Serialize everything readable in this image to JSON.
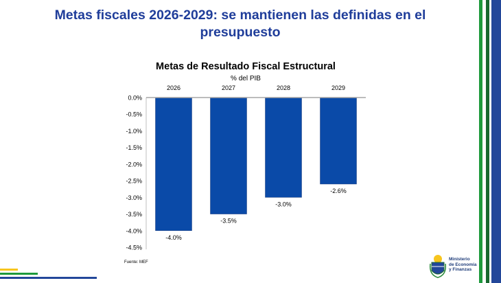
{
  "slide": {
    "title": "Metas fiscales 2026-2029: se mantienen las definidas en el presupuesto",
    "source": "Fuente: MEF",
    "logo_text": [
      "Ministerio",
      "de Economía",
      "y Finanzas"
    ],
    "colors": {
      "title": "#1f3d9a",
      "green": "#1e9a3c",
      "dark_green": "#17682e",
      "blue": "#23479a",
      "yellow": "#f7c51e"
    }
  },
  "chart_data": {
    "type": "bar",
    "title": "Metas de Resultado Fiscal Estructural",
    "subtitle": "% del PIB",
    "categories": [
      "2026",
      "2027",
      "2028",
      "2029"
    ],
    "values": [
      -4.0,
      -3.5,
      -3.0,
      -2.6
    ],
    "data_labels": [
      "-4.0%",
      "-3.5%",
      "-3.0%",
      "-2.6%"
    ],
    "ylim": [
      -4.5,
      0
    ],
    "yticks": [
      "0.0%",
      "-0.5%",
      "-1.0%",
      "-1.5%",
      "-2.0%",
      "-2.5%",
      "-3.0%",
      "-3.5%",
      "-4.0%",
      "-4.5%"
    ],
    "ytick_values": [
      0,
      -0.5,
      -1.0,
      -1.5,
      -2.0,
      -2.5,
      -3.0,
      -3.5,
      -4.0,
      -4.5
    ],
    "bar_color": "#0a4aa8",
    "grid": false,
    "legend": "none"
  }
}
